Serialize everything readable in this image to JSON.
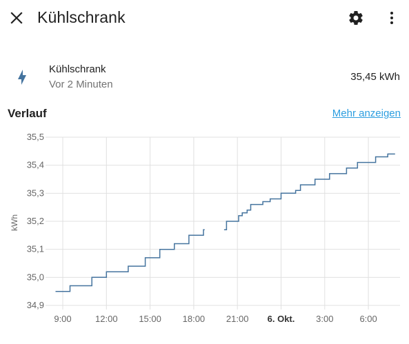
{
  "header": {
    "title": "Kühlschrank",
    "close_icon": "close-icon",
    "settings_icon": "gear-icon",
    "more_icon": "dots-vertical-icon"
  },
  "entity": {
    "icon": "lightning-bolt-icon",
    "icon_color": "#44739e",
    "name": "Kühlschrank",
    "last_changed": "Vor 2 Minuten",
    "state": "35,45 kWh"
  },
  "history": {
    "title": "Verlauf",
    "more_label": "Mehr anzeigen"
  },
  "chart_data": {
    "type": "line",
    "ylabel": "kWh",
    "ylim": [
      34.9,
      35.5
    ],
    "y_ticks": [
      "35,5",
      "35,4",
      "35,3",
      "35,2",
      "35,1",
      "35,0",
      "34,9"
    ],
    "x_ticks": [
      "9:00",
      "12:00",
      "15:00",
      "18:00",
      "21:00",
      "6. Okt.",
      "3:00",
      "6:00"
    ],
    "line_color": "#44739e",
    "grid": true,
    "series": [
      {
        "x": [
          "8:30",
          "9:15",
          "9:30",
          "10:30",
          "11:00",
          "11:45",
          "12:00",
          "13:00",
          "13:30",
          "14:00",
          "14:40",
          "15:00",
          "15:40",
          "16:00",
          "16:40",
          "17:00",
          "17:40",
          "18:15",
          "18:40",
          "18:45"
        ],
        "values": [
          34.95,
          34.95,
          34.97,
          34.97,
          35.0,
          35.0,
          35.02,
          35.02,
          35.04,
          35.04,
          35.07,
          35.07,
          35.1,
          35.1,
          35.12,
          35.12,
          35.15,
          35.15,
          35.17,
          35.17
        ]
      },
      {
        "x": [
          "20:05",
          "20:15",
          "20:50",
          "21:05",
          "21:20",
          "21:40",
          "21:55",
          "22:30",
          "22:45",
          "23:15",
          "23:35",
          "0:00",
          "0:30",
          "1:00",
          "1:20",
          "2:00",
          "2:20",
          "3:00",
          "3:20",
          "4:00",
          "4:30",
          "5:00",
          "5:15",
          "6:00",
          "6:30",
          "7:10",
          "7:20",
          "7:50"
        ],
        "values": [
          35.17,
          35.2,
          35.2,
          35.22,
          35.23,
          35.24,
          35.26,
          35.26,
          35.27,
          35.28,
          35.28,
          35.3,
          35.3,
          35.31,
          35.33,
          35.33,
          35.35,
          35.35,
          35.37,
          35.37,
          35.39,
          35.39,
          35.41,
          35.41,
          35.43,
          35.43,
          35.44,
          35.44
        ]
      }
    ]
  }
}
